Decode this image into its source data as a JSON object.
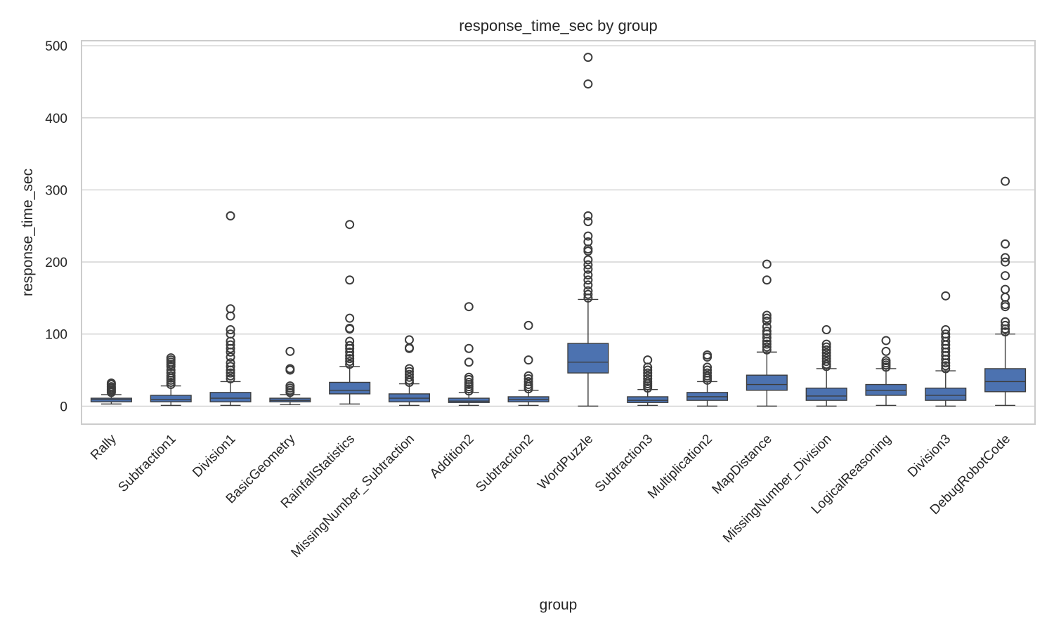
{
  "chart_data": {
    "type": "box",
    "title": "response_time_sec by group",
    "xlabel": "group",
    "ylabel": "response_time_sec",
    "ylim": [
      -25,
      507
    ],
    "yticks": [
      0,
      100,
      200,
      300,
      400,
      500
    ],
    "grid": true,
    "box_color": "#4c72b0",
    "line_color": "#3d3d3d",
    "categories": [
      "Rally",
      "Subtraction1",
      "Division1",
      "BasicGeometry",
      "RainfallStatistics",
      "MissingNumber_Subtraction",
      "Addition2",
      "Subtraction2",
      "WordPuzzle",
      "Subtraction3",
      "Multiplication2",
      "MapDistance",
      "MissingNumber_Division",
      "LogicalReasoning",
      "Division3",
      "DebugRobotCode"
    ],
    "boxes": [
      {
        "whislo": 3,
        "q1": 6,
        "med": 9,
        "q3": 11,
        "whishi": 16,
        "fliers": [
          19,
          21,
          23,
          25,
          27,
          30,
          32
        ]
      },
      {
        "whislo": 1,
        "q1": 6,
        "med": 9,
        "q3": 15,
        "whishi": 28,
        "fliers": [
          30,
          33,
          36,
          39,
          42,
          46,
          50,
          55,
          58,
          61,
          64,
          67
        ]
      },
      {
        "whislo": 1,
        "q1": 6,
        "med": 11,
        "q3": 19,
        "whishi": 34,
        "fliers": [
          38,
          42,
          46,
          50,
          55,
          60,
          68,
          75,
          80,
          85,
          90,
          100,
          106,
          125,
          135,
          264
        ]
      },
      {
        "whislo": 2,
        "q1": 6,
        "med": 8,
        "q3": 11,
        "whishi": 16,
        "fliers": [
          19,
          22,
          25,
          28,
          50,
          52,
          76
        ]
      },
      {
        "whislo": 3,
        "q1": 17,
        "med": 22,
        "q3": 33,
        "whishi": 55,
        "fliers": [
          58,
          62,
          66,
          70,
          75,
          80,
          84,
          90,
          107,
          108,
          122,
          175,
          252
        ]
      },
      {
        "whislo": 1,
        "q1": 6,
        "med": 11,
        "q3": 17,
        "whishi": 31,
        "fliers": [
          33,
          36,
          40,
          44,
          48,
          52,
          80,
          81,
          92
        ]
      },
      {
        "whislo": 1,
        "q1": 5,
        "med": 7,
        "q3": 11,
        "whishi": 19,
        "fliers": [
          21,
          24,
          27,
          30,
          33,
          37,
          40,
          61,
          80,
          138
        ]
      },
      {
        "whislo": 1,
        "q1": 6,
        "med": 9,
        "q3": 13,
        "whishi": 22,
        "fliers": [
          24,
          27,
          30,
          34,
          38,
          42,
          64,
          112
        ]
      },
      {
        "whislo": 0,
        "q1": 46,
        "med": 61,
        "q3": 87,
        "whishi": 148,
        "fliers": [
          150,
          155,
          160,
          168,
          175,
          182,
          190,
          196,
          203,
          215,
          218,
          228,
          236,
          256,
          264,
          447,
          484
        ]
      },
      {
        "whislo": 1,
        "q1": 5,
        "med": 8,
        "q3": 13,
        "whishi": 23,
        "fliers": [
          25,
          28,
          31,
          34,
          38,
          42,
          46,
          50,
          54,
          64
        ]
      },
      {
        "whislo": 0,
        "q1": 8,
        "med": 13,
        "q3": 19,
        "whishi": 34,
        "fliers": [
          36,
          39,
          42,
          46,
          50,
          54,
          68,
          71
        ]
      },
      {
        "whislo": 0,
        "q1": 22,
        "med": 30,
        "q3": 43,
        "whishi": 75,
        "fliers": [
          78,
          82,
          86,
          90,
          95,
          100,
          104,
          110,
          118,
          122,
          126,
          175,
          197
        ]
      },
      {
        "whislo": 0,
        "q1": 8,
        "med": 14,
        "q3": 25,
        "whishi": 52,
        "fliers": [
          55,
          58,
          62,
          66,
          70,
          74,
          78,
          82,
          86,
          106
        ]
      },
      {
        "whislo": 1,
        "q1": 15,
        "med": 22,
        "q3": 30,
        "whishi": 52,
        "fliers": [
          54,
          57,
          60,
          63,
          76,
          91
        ]
      },
      {
        "whislo": 0,
        "q1": 8,
        "med": 15,
        "q3": 25,
        "whishi": 49,
        "fliers": [
          52,
          56,
          60,
          65,
          70,
          75,
          80,
          85,
          90,
          96,
          100,
          106,
          153
        ]
      },
      {
        "whislo": 1,
        "q1": 20,
        "med": 34,
        "q3": 52,
        "whishi": 100,
        "fliers": [
          103,
          107,
          112,
          117,
          138,
          141,
          151,
          162,
          181,
          200,
          206,
          225,
          312
        ]
      }
    ]
  }
}
